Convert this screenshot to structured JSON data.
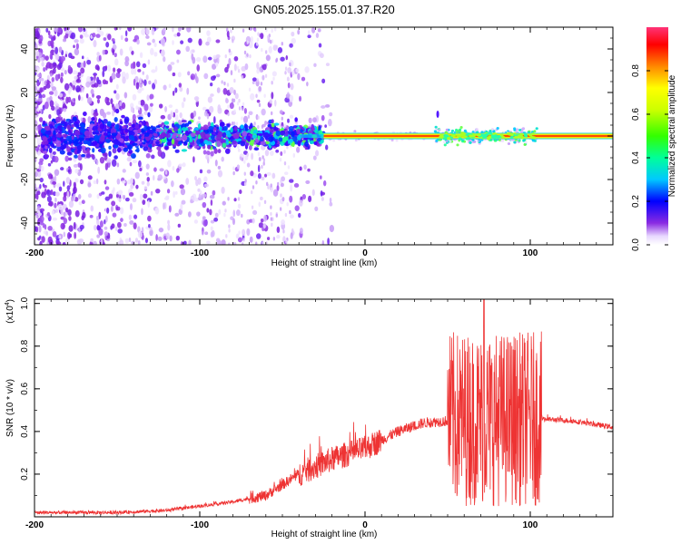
{
  "page_title": "GN05.2025.155.01.37.R20",
  "chart_data": [
    {
      "type": "heatmap",
      "title": "GN05.2025.155.01.37.R20",
      "xlabel": "Height of straight line (km)",
      "ylabel": "Frequency (Hz)",
      "xlim": [
        -200,
        150
      ],
      "ylim": [
        -50,
        50
      ],
      "x_ticks": [
        "-200",
        "-100",
        "0",
        "100"
      ],
      "y_ticks": [
        "40",
        "20",
        "0",
        "-20",
        "-40"
      ],
      "colorbar": {
        "label": "Normalized spectral amplitude",
        "range": [
          0,
          1
        ],
        "ticks": [
          "0.0",
          "0.2",
          "0.4",
          "0.6",
          "0.8"
        ]
      },
      "grid": false,
      "features": {
        "strong_line_frequency_hz": 0,
        "strong_line_x_range_km": [
          -25,
          150
        ],
        "noise_band_x_range_km": [
          -200,
          -25
        ]
      }
    },
    {
      "type": "line",
      "xlabel": "Height of straight line (km)",
      "ylabel": "SNR (10 * v/v)",
      "y_scale_label": "(x10",
      "y_scale_exponent": "4",
      "color": "#ee3333",
      "xlim": [
        -200,
        150
      ],
      "ylim": [
        0,
        1.02
      ],
      "x_ticks": [
        "-200",
        "-100",
        "0",
        "100"
      ],
      "y_ticks": [
        "0.2",
        "0.4",
        "0.6",
        "0.8",
        "1.0"
      ],
      "grid": false,
      "trend_points": [
        {
          "x": -200,
          "y": 0.02
        },
        {
          "x": -150,
          "y": 0.02
        },
        {
          "x": -120,
          "y": 0.03
        },
        {
          "x": -100,
          "y": 0.05
        },
        {
          "x": -80,
          "y": 0.07
        },
        {
          "x": -60,
          "y": 0.1
        },
        {
          "x": -40,
          "y": 0.2
        },
        {
          "x": -20,
          "y": 0.27
        },
        {
          "x": 0,
          "y": 0.32
        },
        {
          "x": 20,
          "y": 0.4
        },
        {
          "x": 35,
          "y": 0.44
        },
        {
          "x": 50,
          "y": 0.45
        },
        {
          "x": 75,
          "y": 0.48
        },
        {
          "x": 105,
          "y": 0.46
        },
        {
          "x": 125,
          "y": 0.45
        },
        {
          "x": 150,
          "y": 0.42
        }
      ],
      "high_variance_range_km": [
        50,
        107
      ],
      "peak": {
        "x": 72,
        "y": 1.02
      }
    }
  ]
}
